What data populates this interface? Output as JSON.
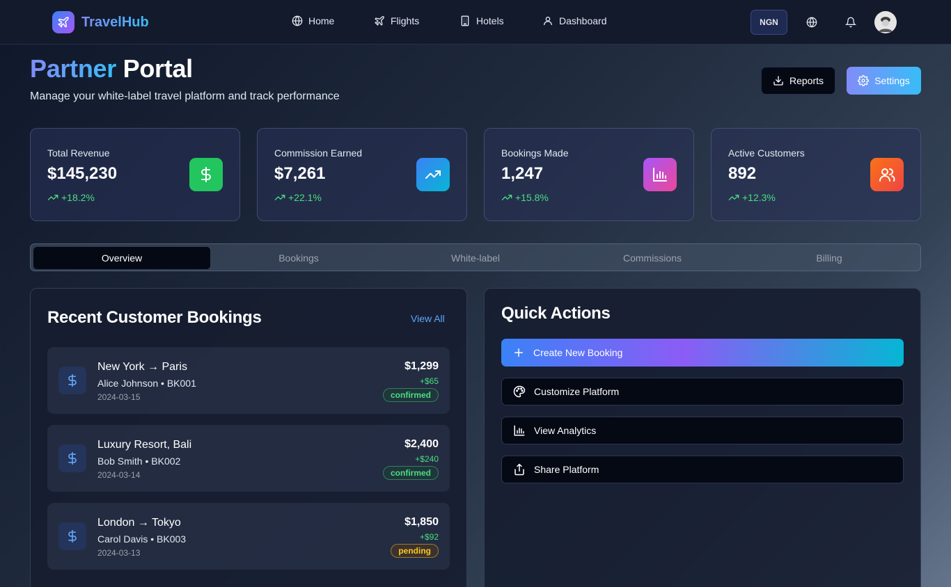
{
  "nav": {
    "brand": "TravelHub",
    "links": [
      {
        "label": "Home",
        "icon": "globe-icon"
      },
      {
        "label": "Flights",
        "icon": "plane-icon"
      },
      {
        "label": "Hotels",
        "icon": "building-icon"
      },
      {
        "label": "Dashboard",
        "icon": "user-icon"
      }
    ],
    "currency": "NGN"
  },
  "header": {
    "title_part1": "Partner",
    "title_part2": "Portal",
    "subtitle": "Manage your white-label travel platform and track performance",
    "reports_label": "Reports",
    "settings_label": "Settings"
  },
  "stats": [
    {
      "label": "Total Revenue",
      "value": "$145,230",
      "change": "+18.2%",
      "icon": "dollar-icon",
      "color": "#22c55e"
    },
    {
      "label": "Commission Earned",
      "value": "$7,261",
      "change": "+22.1%",
      "icon": "trending-up-icon",
      "color": "#3b82f6"
    },
    {
      "label": "Bookings Made",
      "value": "1,247",
      "change": "+15.8%",
      "icon": "bar-chart-icon",
      "color": "#a855f7"
    },
    {
      "label": "Active Customers",
      "value": "892",
      "change": "+12.3%",
      "icon": "users-icon",
      "color": "#f97316"
    }
  ],
  "tabs": [
    "Overview",
    "Bookings",
    "White-label",
    "Commissions",
    "Billing"
  ],
  "recent": {
    "title": "Recent Customer Bookings",
    "view_all": "View All",
    "bookings": [
      {
        "route": "New York → Paris",
        "meta": "Alice Johnson • BK001",
        "date": "2024-03-15",
        "amount": "$1,299",
        "commission": "+$65",
        "status": "confirmed"
      },
      {
        "route": "Luxury Resort, Bali",
        "meta": "Bob Smith • BK002",
        "date": "2024-03-14",
        "amount": "$2,400",
        "commission": "+$240",
        "status": "confirmed"
      },
      {
        "route": "London → Tokyo",
        "meta": "Carol Davis • BK003",
        "date": "2024-03-13",
        "amount": "$1,850",
        "commission": "+$92",
        "status": "pending"
      }
    ]
  },
  "quick_actions": {
    "title": "Quick Actions",
    "items": [
      {
        "label": "Create New Booking",
        "icon": "plus-icon"
      },
      {
        "label": "Customize Platform",
        "icon": "palette-icon"
      },
      {
        "label": "View Analytics",
        "icon": "bar-chart-icon"
      },
      {
        "label": "Share Platform",
        "icon": "share-icon"
      }
    ]
  }
}
